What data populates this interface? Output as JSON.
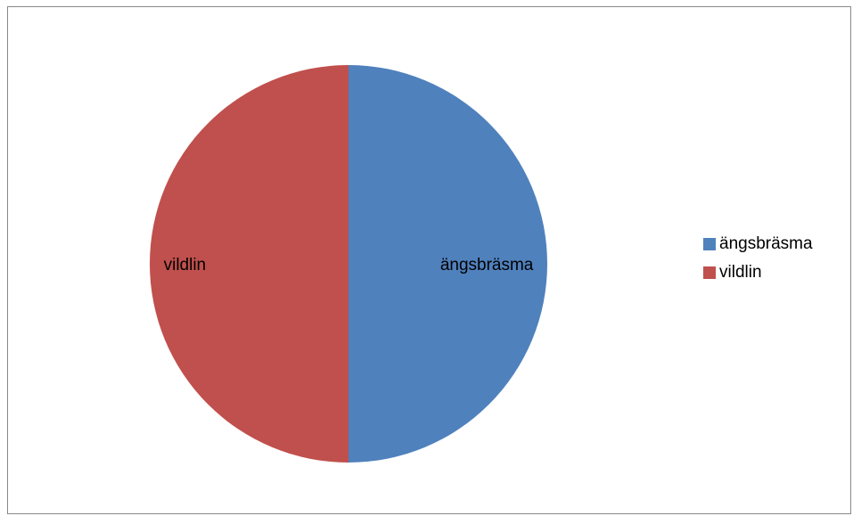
{
  "chart_data": {
    "type": "pie",
    "title": "",
    "slices": [
      {
        "label": "ängsbräsma",
        "value": 50,
        "color": "#4F81BD"
      },
      {
        "label": "vildlin",
        "value": 50,
        "color": "#C0504D"
      }
    ],
    "legend": {
      "position": "right"
    }
  }
}
